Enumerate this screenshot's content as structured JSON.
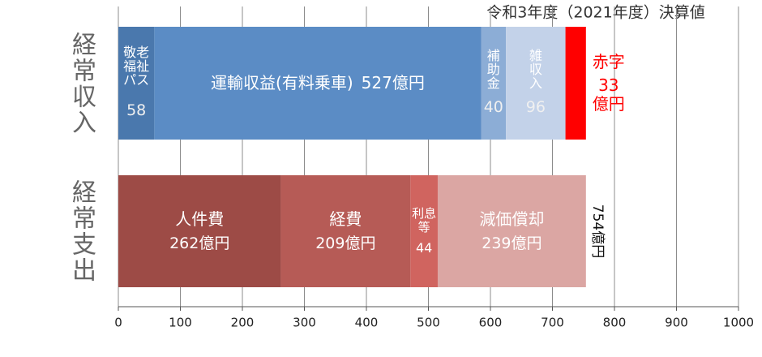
{
  "chart_data": {
    "type": "stacked_hbar",
    "title": "令和3年度（2021年度）決算値",
    "stacks": [
      {
        "category": "経常収入",
        "segments": [
          {
            "name": "敬老福祉パス",
            "value": 58,
            "color": "#4a78ad"
          },
          {
            "name": "運輸収益(有料乗車)",
            "value": 527,
            "value_label": "527億円",
            "color": "#5b8cc5"
          },
          {
            "name": "補助金",
            "value": 40,
            "color": "#8cadd6"
          },
          {
            "name": "雑収入",
            "value": 96,
            "color": "#c3d2e9"
          },
          {
            "name": "赤字",
            "value": 33,
            "value_label": "33億円",
            "color": "#ff0000"
          }
        ]
      },
      {
        "category": "経常支出",
        "segments": [
          {
            "name": "人件費",
            "value": 262,
            "value_label": "262億円",
            "color": "#9d4b46"
          },
          {
            "name": "経費",
            "value": 209,
            "value_label": "209億円",
            "color": "#b65b56"
          },
          {
            "name": "利息等",
            "value": 44,
            "color": "#d0645f"
          },
          {
            "name": "減価償却",
            "value": 239,
            "value_label": "239億円",
            "color": "#dba6a3"
          }
        ],
        "total": {
          "value": 754,
          "label": "754億円"
        }
      }
    ],
    "xlim": [
      0,
      1000
    ],
    "xticks": [
      0,
      100,
      200,
      300,
      400,
      500,
      600,
      700,
      800,
      900,
      1000
    ],
    "grid": true
  }
}
